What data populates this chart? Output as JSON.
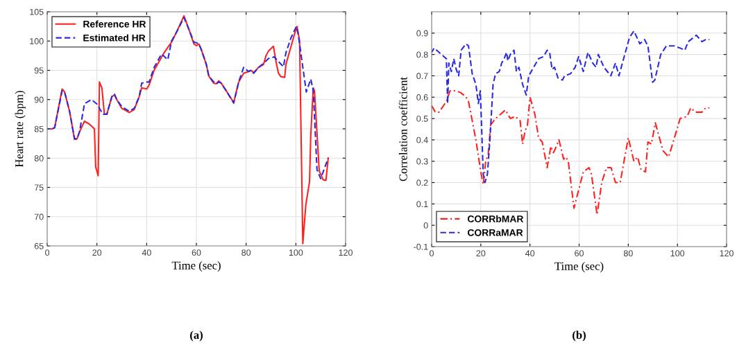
{
  "chart_data": [
    {
      "type": "line",
      "xlabel": "Time (sec)",
      "ylabel": "Heart rate (bpm)",
      "annotations": [
        "(a)"
      ],
      "xlim": [
        0,
        120
      ],
      "ylim": [
        65,
        105
      ],
      "xticks": [
        0,
        20,
        40,
        60,
        80,
        100,
        120
      ],
      "yticks": [
        65,
        70,
        75,
        80,
        85,
        90,
        95,
        100,
        105
      ],
      "grid": true,
      "legend": "top left",
      "series": [
        {
          "name": "Reference HR",
          "color": "#ff2020",
          "line_style": "solid",
          "x": [
            0,
            2,
            3,
            6,
            7,
            9,
            11,
            12,
            13,
            15,
            17,
            19,
            19.5,
            20.5,
            21,
            22,
            23,
            24,
            26,
            27,
            28,
            30,
            33,
            35,
            37,
            38,
            40,
            41,
            43,
            47,
            50,
            52,
            55,
            57,
            59,
            60,
            61,
            62,
            64,
            65,
            67,
            68,
            69,
            70,
            72,
            75,
            77,
            79,
            81,
            82,
            83,
            85,
            87,
            88,
            89,
            91,
            92,
            93,
            94,
            95.5,
            96,
            98,
            100,
            100.5,
            101.5,
            102.8,
            104,
            105.5,
            106,
            107,
            107.5,
            109.4,
            111,
            112.1,
            113
          ],
          "values": [
            85,
            85,
            85.2,
            91.8,
            91.3,
            88,
            83.2,
            83.3,
            84.5,
            86.3,
            85.8,
            85,
            78.5,
            77,
            93,
            92,
            87.5,
            87.5,
            90.5,
            90.8,
            90,
            88.5,
            87.8,
            88.3,
            90.5,
            92,
            91.8,
            92.5,
            95,
            98,
            99.8,
            101.5,
            104.3,
            102,
            99.5,
            99.2,
            99.5,
            98.5,
            96,
            94,
            92.8,
            92.7,
            93.2,
            92.8,
            91.5,
            89.5,
            93,
            94.5,
            94.8,
            95,
            94.6,
            95.5,
            96,
            97.5,
            98.3,
            99.1,
            96.5,
            94.5,
            93.9,
            93.8,
            96,
            99,
            102,
            102.5,
            100,
            65.4,
            72,
            76,
            84,
            92,
            91.5,
            77.8,
            76.3,
            76.2,
            80
          ]
        },
        {
          "name": "Estimated HR",
          "color": "#2a2ae0",
          "line_style": "dashed",
          "x": [
            0,
            2,
            3,
            6,
            7,
            9,
            11,
            12,
            13,
            15,
            17.8,
            20.1,
            22.4,
            24,
            26,
            27,
            28,
            30,
            33,
            35,
            37,
            38,
            40,
            41,
            43,
            46,
            48.5,
            50,
            52,
            55,
            57,
            59,
            60,
            61,
            62,
            64,
            65,
            67,
            68,
            69,
            70,
            72,
            75,
            77,
            79,
            81,
            82,
            83,
            85,
            87,
            89,
            91.3,
            93,
            95,
            96,
            98,
            100.2,
            101,
            104.2,
            106,
            107,
            108.5,
            110,
            113
          ],
          "values": [
            85,
            85,
            85.2,
            91.5,
            91.3,
            88,
            83.3,
            83.3,
            84.5,
            89.3,
            90,
            89.2,
            87.5,
            87.5,
            90.5,
            91,
            90,
            88.8,
            88,
            88.5,
            90.5,
            92.8,
            93,
            93,
            95.5,
            97.8,
            96.8,
            100,
            101.5,
            104,
            102,
            99.8,
            99.7,
            99.5,
            98.5,
            96,
            94,
            93,
            92.7,
            93,
            92.8,
            91.5,
            89.4,
            93,
            95.5,
            94.8,
            95,
            94.5,
            95.5,
            96.2,
            97,
            97.3,
            96.5,
            95.6,
            98,
            100.5,
            102.5,
            101,
            91.3,
            93.5,
            91.5,
            78,
            76.5,
            80
          ]
        }
      ]
    },
    {
      "type": "line",
      "xlabel": "Time (sec)",
      "ylabel": "Correlation coefficient",
      "annotations": [
        "(b)"
      ],
      "xlim": [
        0,
        120
      ],
      "ylim": [
        -0.1,
        1.0
      ],
      "xticks": [
        0,
        20,
        40,
        60,
        80,
        100,
        120
      ],
      "yticks": [
        -0.1,
        0,
        0.1,
        0.2,
        0.3,
        0.4,
        0.5,
        0.6,
        0.7,
        0.8,
        0.9
      ],
      "grid": true,
      "legend": "bottom left",
      "series": [
        {
          "name": "CORRbMAR",
          "color": "#ff2020",
          "line_style": "dashdot",
          "x": [
            0,
            1.5,
            3,
            6,
            7.5,
            10,
            12,
            14,
            15,
            16,
            18,
            20,
            21,
            22,
            23,
            24,
            26,
            28,
            30,
            32,
            34,
            36,
            37,
            38,
            39,
            40,
            42,
            43.5,
            45,
            47,
            48.5,
            49.5,
            50,
            51.8,
            53.7,
            54.6,
            55.6,
            57.9,
            61.7,
            64,
            65,
            67.3,
            69.2,
            71.1,
            73,
            74.8,
            76.7,
            80,
            82.3,
            83.8,
            85.2,
            87,
            88,
            89.4,
            91,
            94.1,
            96.4,
            98.8,
            101.1,
            104,
            105.4,
            107.2,
            110,
            111.5,
            113
          ],
          "values": [
            0.56,
            0.53,
            0.53,
            0.58,
            0.63,
            0.63,
            0.62,
            0.6,
            0.58,
            0.52,
            0.4,
            0.25,
            0.19,
            0.3,
            0.33,
            0.47,
            0.5,
            0.52,
            0.54,
            0.5,
            0.51,
            0.49,
            0.38,
            0.44,
            0.47,
            0.6,
            0.52,
            0.41,
            0.39,
            0.27,
            0.37,
            0.34,
            0.35,
            0.4,
            0.31,
            0.32,
            0.3,
            0.08,
            0.25,
            0.27,
            0.24,
            0.05,
            0.2,
            0.27,
            0.27,
            0.2,
            0.2,
            0.41,
            0.3,
            0.32,
            0.26,
            0.25,
            0.39,
            0.38,
            0.48,
            0.35,
            0.32,
            0.41,
            0.5,
            0.51,
            0.55,
            0.53,
            0.53,
            0.55,
            0.55
          ]
        },
        {
          "name": "CORRaMAR",
          "color": "#2a2ae0",
          "line_style": "dashed",
          "x": [
            0,
            1,
            5,
            6,
            6.5,
            7,
            8,
            9,
            10,
            11,
            12,
            14,
            15,
            16.5,
            18,
            19,
            19.8,
            21,
            21.7,
            22.7,
            23.7,
            25,
            26,
            27.5,
            28.5,
            29.5,
            30.5,
            31,
            32,
            33.5,
            34.5,
            35.5,
            37,
            38.5,
            39.5,
            41,
            42,
            43.5,
            45.5,
            47,
            48,
            49,
            50,
            51.4,
            53.2,
            54.1,
            56.5,
            58.4,
            59.8,
            61.7,
            63.6,
            65.5,
            66.9,
            67.8,
            70.1,
            72.9,
            74.8,
            76.2,
            78.1,
            80.5,
            82.3,
            84.7,
            86.6,
            88,
            89.9,
            90.8,
            93.2,
            95.5,
            98.8,
            101.1,
            103,
            104.4,
            107.7,
            110,
            111.5,
            113
          ],
          "values": [
            0.81,
            0.83,
            0.79,
            0.78,
            0.57,
            0.76,
            0.72,
            0.78,
            0.73,
            0.7,
            0.82,
            0.85,
            0.84,
            0.71,
            0.66,
            0.57,
            0.63,
            0.24,
            0.2,
            0.24,
            0.4,
            0.66,
            0.71,
            0.72,
            0.76,
            0.78,
            0.81,
            0.77,
            0.8,
            0.82,
            0.72,
            0.74,
            0.66,
            0.61,
            0.7,
            0.73,
            0.75,
            0.78,
            0.79,
            0.82,
            0.81,
            0.73,
            0.74,
            0.69,
            0.68,
            0.7,
            0.71,
            0.74,
            0.79,
            0.72,
            0.81,
            0.76,
            0.74,
            0.8,
            0.74,
            0.7,
            0.76,
            0.7,
            0.78,
            0.88,
            0.91,
            0.85,
            0.87,
            0.84,
            0.67,
            0.68,
            0.8,
            0.84,
            0.84,
            0.83,
            0.82,
            0.86,
            0.89,
            0.86,
            0.87,
            0.87
          ]
        }
      ]
    }
  ]
}
